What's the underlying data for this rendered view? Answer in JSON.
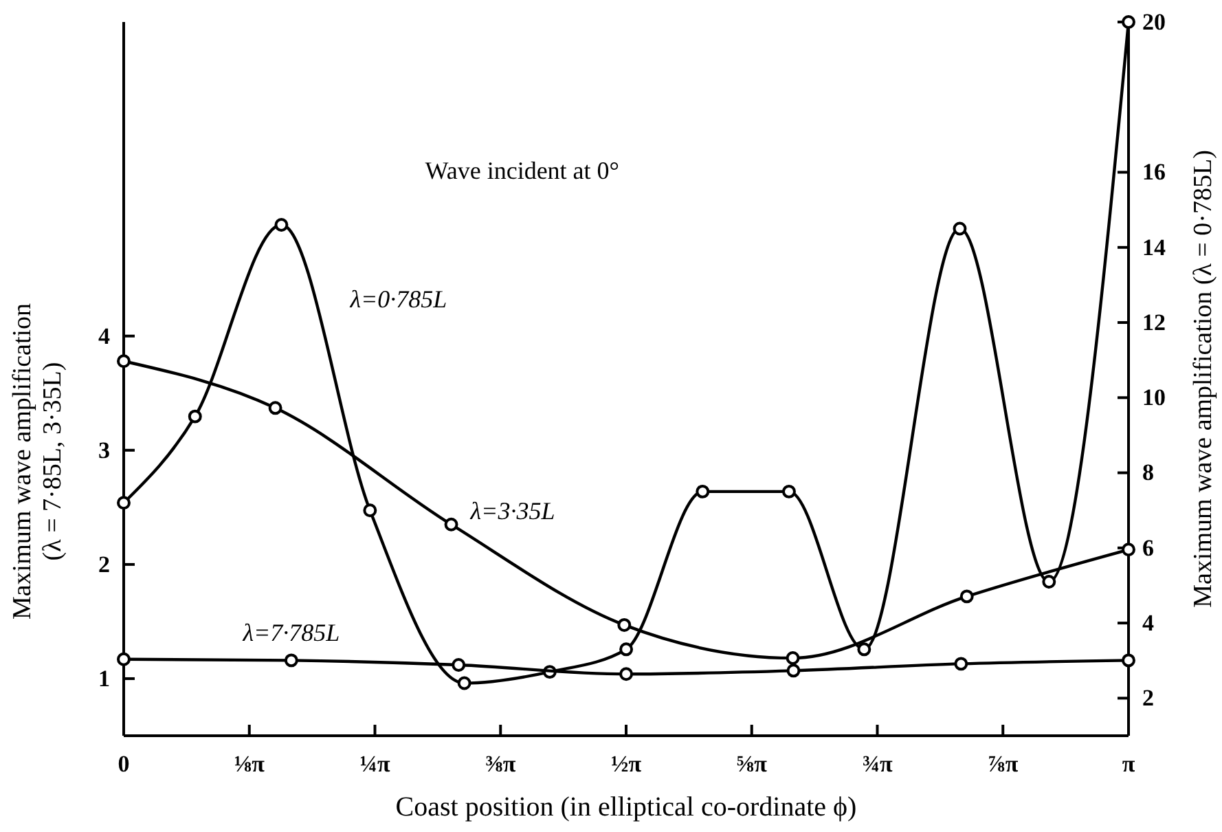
{
  "chart_data": {
    "type": "line",
    "xlabel": "Coast position (in elliptical co-ordinate ϕ)",
    "ylabel": "Maximum wave amplification\n(λ = 7·85L, 3·35L)",
    "y2label": "Maximum wave amplification (λ = 0·785L)",
    "annotations": [
      "Wave incident at 0°"
    ],
    "xlim": [
      0,
      3.1416
    ],
    "xticks": [
      0,
      {
        "value": 0.3927,
        "label": "⅛π"
      },
      {
        "value": 0.7854,
        "label": "¼π"
      },
      {
        "value": 1.1781,
        "label": "⅜π"
      },
      {
        "value": 1.5708,
        "label": "½π"
      },
      {
        "value": 1.9635,
        "label": "⅝π"
      },
      {
        "value": 2.3562,
        "label": "¾π"
      },
      {
        "value": 2.7489,
        "label": "⅞π"
      },
      {
        "value": 3.1416,
        "label": "π"
      }
    ],
    "ylim": [
      0.5,
      6.75
    ],
    "yticks": [
      1,
      2,
      3,
      4
    ],
    "y2lim": [
      1,
      20
    ],
    "y2ticks": [
      2,
      4,
      6,
      8,
      10,
      12,
      14,
      16,
      20
    ],
    "marker": "circle",
    "line_style": "solid",
    "grid": false,
    "series": [
      {
        "name": "λ=0·785L",
        "color": "#000000",
        "axis": "y2",
        "x": [
          0,
          0.223,
          0.493,
          0.77,
          1.065,
          1.332,
          1.571,
          1.81,
          2.08,
          2.315,
          2.614,
          2.893,
          3.1416
        ],
        "values": [
          7.2,
          9.5,
          14.6,
          7.0,
          2.4,
          2.7,
          3.3,
          7.5,
          7.5,
          3.3,
          14.5,
          5.1,
          20
        ]
      },
      {
        "name": "λ=3·35L",
        "color": "#000000",
        "x": [
          0,
          0.474,
          1.024,
          1.565,
          2.092,
          2.636,
          3.1416
        ],
        "values": [
          3.78,
          3.37,
          2.35,
          1.47,
          1.18,
          1.72,
          2.13
        ]
      },
      {
        "name": "λ=7·785L",
        "color": "#000000",
        "x": [
          0,
          0.524,
          1.047,
          1.571,
          2.094,
          2.618,
          3.1416
        ],
        "values": [
          1.17,
          1.16,
          1.12,
          1.04,
          1.07,
          1.13,
          1.16
        ]
      }
    ]
  }
}
